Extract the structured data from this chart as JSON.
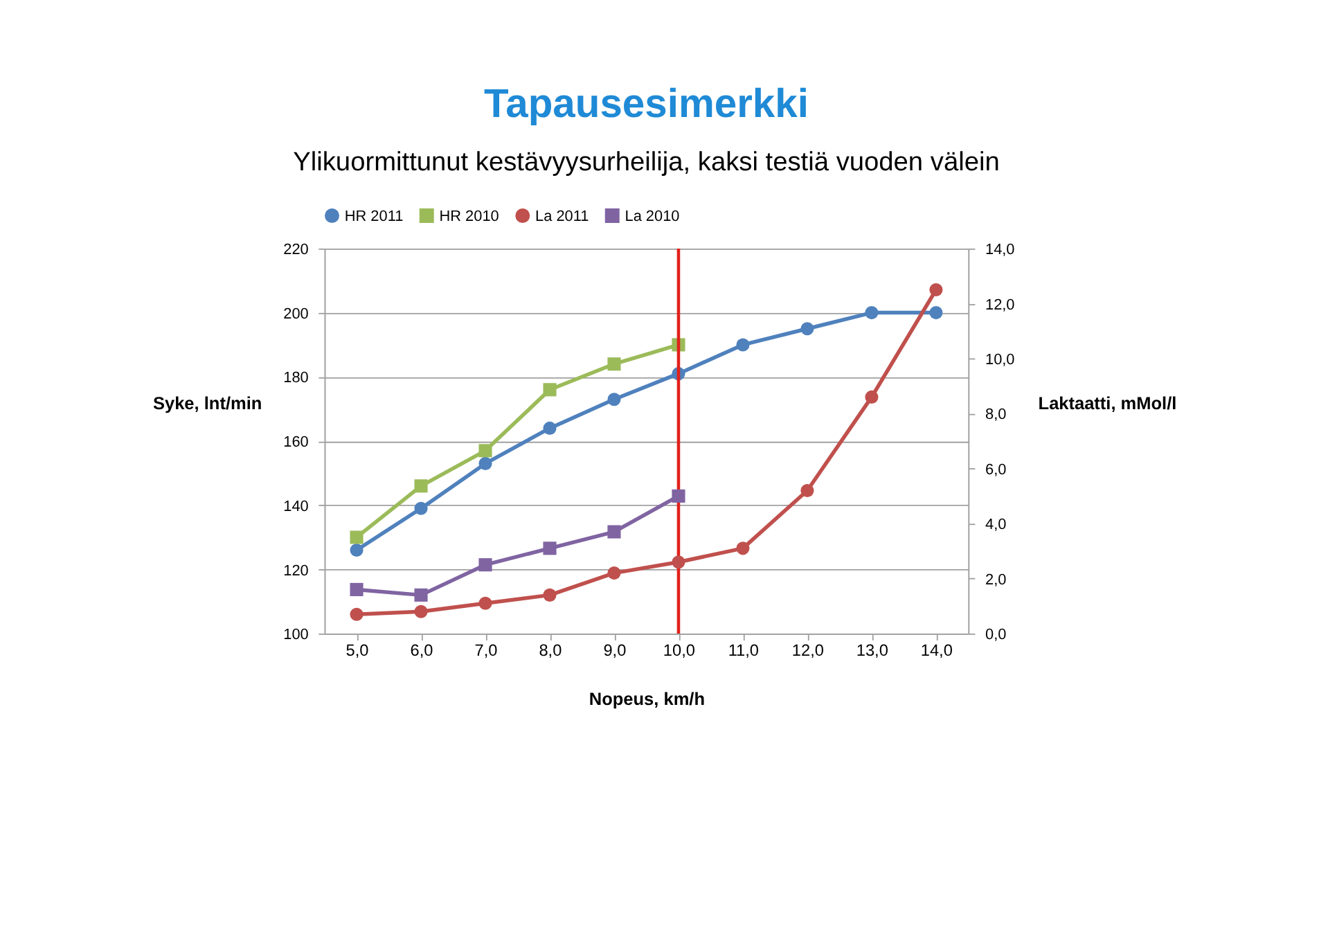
{
  "chart_data": {
    "type": "line",
    "title": "Tapausesimerkki",
    "subtitle": "Ylikuormittunut kestävyysurheilija, kaksi testiä vuoden välein",
    "xlabel": "Nopeus, km/h",
    "ylabel": "Syke, lnt/min",
    "y2label": "Laktaatti, mMol/l",
    "categories": [
      "5,0",
      "6,0",
      "7,0",
      "8,0",
      "9,0",
      "10,0",
      "11,0",
      "12,0",
      "13,0",
      "14,0"
    ],
    "series": [
      {
        "name": "HR 2011",
        "color": "#4f81bd",
        "marker": "circle",
        "values": [
          126,
          139,
          153,
          164,
          173,
          181,
          190,
          195,
          200,
          200
        ]
      },
      {
        "name": "HR 2010",
        "color": "#9bbb59",
        "marker": "square",
        "values": [
          130,
          146,
          157,
          176,
          184,
          190,
          null,
          null,
          null,
          null
        ]
      },
      {
        "name": "La 2011",
        "color": "#c0504d",
        "marker": "circle",
        "axis": "y2",
        "values": [
          0.7,
          0.8,
          1.1,
          1.4,
          2.2,
          2.6,
          3.1,
          5.2,
          8.6,
          12.5
        ]
      },
      {
        "name": "La 2010",
        "color": "#8064a2",
        "marker": "square",
        "axis": "y2",
        "values": [
          1.6,
          1.4,
          2.5,
          3.1,
          3.7,
          5.0,
          null,
          null,
          null,
          null
        ]
      }
    ],
    "ylim": [
      100,
      220
    ],
    "yticks": [
      100,
      120,
      140,
      160,
      180,
      200,
      220
    ],
    "y2lim": [
      0,
      14
    ],
    "y2ticks": [
      {
        "value": 0,
        "label": "0,0"
      },
      {
        "value": 2,
        "label": "2,0"
      },
      {
        "value": 4,
        "label": "4,0"
      },
      {
        "value": 6,
        "label": "6,0"
      },
      {
        "value": 8,
        "label": "8,0"
      },
      {
        "value": 10,
        "label": "10,0"
      },
      {
        "value": 12,
        "label": "12,0"
      },
      {
        "value": 14,
        "label": "14,0"
      }
    ],
    "ref_lines": [
      {
        "axis": "x",
        "value": "10,0",
        "color": "#e3201b"
      }
    ],
    "grid": "y",
    "legend": "top"
  }
}
